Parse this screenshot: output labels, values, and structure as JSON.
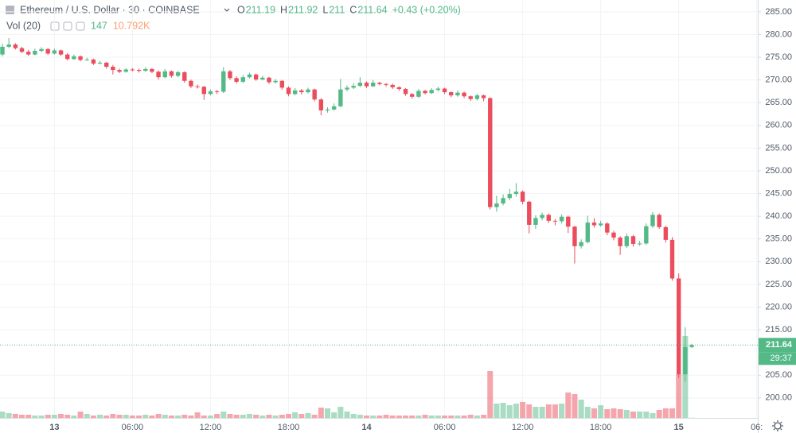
{
  "chart_data": {
    "type": "candlestick",
    "title": "Ethereum / U.S. Dollar · 30 · COINBASE",
    "ohlc_letters": [
      "O",
      "H",
      "L",
      "C"
    ],
    "change": "+0.43 (+0.20%)",
    "volume_indicator": "Vol (20)",
    "volume_ma": "10.792K",
    "countdown": "29:37",
    "up_color": "#53b987",
    "down_color": "#eb4d5c",
    "grid": true,
    "categories": [
      null,
      null,
      null,
      null,
      null,
      null,
      null,
      null,
      "13",
      null,
      null,
      null,
      null,
      null,
      null,
      null,
      null,
      null,
      null,
      null,
      "06:00",
      null,
      null,
      null,
      null,
      null,
      null,
      null,
      null,
      null,
      null,
      null,
      "12:00",
      null,
      null,
      null,
      null,
      null,
      null,
      null,
      null,
      null,
      null,
      null,
      "18:00",
      null,
      null,
      null,
      null,
      null,
      null,
      null,
      null,
      null,
      null,
      null,
      "14",
      null,
      null,
      null,
      null,
      null,
      null,
      null,
      null,
      null,
      null,
      null,
      "06:00",
      null,
      null,
      null,
      null,
      null,
      null,
      null,
      null,
      null,
      null,
      null,
      "12:00",
      null,
      null,
      null,
      null,
      null,
      null,
      null,
      null,
      null,
      null,
      null,
      "18:00",
      null,
      null,
      null,
      null,
      null,
      null,
      null,
      null,
      null,
      null,
      null,
      "15",
      null,
      null,
      null,
      null,
      null,
      null,
      null,
      null,
      null,
      null,
      null,
      "06:"
    ],
    "open": [
      275.6,
      277.3,
      277.8,
      277.0,
      276.2,
      275.6,
      276.4,
      276.8,
      275.8,
      276.5,
      275.6,
      274.6,
      275.2,
      274.4,
      274.5,
      273.6,
      273.8,
      272.9,
      272.2,
      271.8,
      272.3,
      272.2,
      272.0,
      272.4,
      271.8,
      270.6,
      271.9,
      270.9,
      271.7,
      269.8,
      268.6,
      268.5,
      266.9,
      267.5,
      267.4,
      271.9,
      270.4,
      269.6,
      270.6,
      271.2,
      270.1,
      270.5,
      269.5,
      269.8,
      268.3,
      266.9,
      267.7,
      267.3,
      267.9,
      265.7,
      263.3,
      263.5,
      264.2,
      267.9,
      268.3,
      268.7,
      269.4,
      268.6,
      269.4,
      269.1,
      268.9,
      268.4,
      268.0,
      266.9,
      266.3,
      267.6,
      267.1,
      267.8,
      268.1,
      267.3,
      266.6,
      267.2,
      266.4,
      265.8,
      266.6,
      266.0,
      242.0,
      242.8,
      244.0,
      244.9,
      245.4,
      243.2,
      238.1,
      239.6,
      240.3,
      239.0,
      238.9,
      239.9,
      237.7,
      233.4,
      234.3,
      238.6,
      238.0,
      238.4,
      236.4,
      235.3,
      233.4,
      235.6,
      233.9,
      234.0,
      237.8,
      240.3,
      237.6,
      234.8,
      226.3,
      205.2,
      211.19,
      null,
      null,
      null,
      null,
      null,
      null,
      null,
      null,
      null,
      null
    ],
    "high": [
      278.0,
      279.2,
      278.1,
      277.3,
      276.6,
      276.9,
      277.2,
      277.0,
      276.9,
      276.7,
      275.9,
      275.6,
      275.4,
      274.9,
      274.7,
      274.2,
      274.0,
      273.3,
      272.5,
      272.6,
      272.6,
      272.5,
      272.8,
      272.6,
      272.1,
      272.4,
      272.1,
      272.0,
      271.9,
      270.1,
      269.0,
      268.7,
      267.9,
      267.8,
      272.8,
      272.2,
      270.8,
      271.1,
      271.6,
      271.4,
      270.9,
      270.7,
      270.2,
      270.0,
      268.6,
      268.2,
      268.0,
      268.3,
      268.1,
      266.0,
      264.0,
      264.8,
      270.2,
      268.8,
      269.3,
      270.6,
      269.7,
      270.0,
      269.6,
      269.3,
      269.2,
      268.6,
      268.2,
      267.1,
      268.0,
      267.8,
      268.2,
      268.5,
      268.3,
      267.5,
      267.7,
      267.4,
      266.6,
      267.0,
      266.8,
      266.2,
      244.5,
      244.8,
      246.0,
      247.3,
      245.7,
      243.4,
      240.2,
      240.8,
      240.6,
      239.4,
      240.4,
      240.1,
      237.9,
      234.9,
      240.1,
      239.6,
      239.0,
      238.7,
      236.8,
      235.6,
      236.2,
      235.9,
      234.6,
      238.4,
      240.9,
      240.6,
      237.9,
      235.4,
      227.4,
      215.6,
      211.92,
      null,
      null,
      null,
      null,
      null,
      null,
      null,
      null,
      null,
      null
    ],
    "low": [
      275.2,
      277.0,
      276.7,
      275.9,
      275.3,
      275.4,
      276.1,
      275.5,
      275.6,
      275.3,
      274.3,
      274.4,
      274.1,
      274.2,
      273.3,
      273.4,
      272.5,
      271.2,
      271.5,
      271.6,
      271.9,
      271.6,
      271.8,
      271.5,
      270.1,
      270.4,
      270.5,
      270.6,
      269.4,
      268.2,
      268.1,
      265.6,
      266.6,
      266.9,
      267.1,
      270.0,
      269.2,
      269.3,
      270.3,
      269.8,
      269.9,
      269.1,
      269.2,
      267.9,
      266.4,
      266.6,
      266.8,
      267.0,
      265.3,
      262.2,
      262.8,
      263.2,
      264.0,
      267.5,
      268.0,
      268.4,
      268.2,
      268.4,
      268.8,
      268.5,
      268.0,
      267.6,
      266.5,
      265.9,
      266.0,
      266.8,
      266.9,
      267.5,
      266.9,
      266.2,
      266.3,
      266.0,
      265.4,
      265.5,
      265.3,
      241.5,
      241.0,
      242.4,
      243.5,
      244.3,
      242.6,
      236.2,
      237.2,
      239.1,
      238.5,
      238.0,
      238.4,
      236.3,
      229.6,
      232.9,
      234.0,
      237.5,
      237.7,
      235.8,
      234.7,
      231.5,
      233.0,
      233.3,
      233.5,
      233.7,
      237.4,
      237.2,
      234.2,
      225.8,
      204.4,
      203.6,
      211.0,
      null,
      null,
      null,
      null,
      null,
      null,
      null,
      null,
      null,
      null
    ],
    "close": [
      277.3,
      277.8,
      277.0,
      276.2,
      275.6,
      276.4,
      276.8,
      275.8,
      276.5,
      275.6,
      274.6,
      275.2,
      274.4,
      274.5,
      273.6,
      273.8,
      272.9,
      272.2,
      271.8,
      272.3,
      272.2,
      272.0,
      272.4,
      271.8,
      270.6,
      271.9,
      270.9,
      271.7,
      269.8,
      268.6,
      268.5,
      266.9,
      267.5,
      267.4,
      271.9,
      270.4,
      269.6,
      270.6,
      271.2,
      270.1,
      270.5,
      269.5,
      269.8,
      268.3,
      266.9,
      267.7,
      267.3,
      267.9,
      265.7,
      263.3,
      263.5,
      264.2,
      267.9,
      268.3,
      268.7,
      269.4,
      268.6,
      269.4,
      269.1,
      268.9,
      268.4,
      268.0,
      266.9,
      266.3,
      267.6,
      267.1,
      267.8,
      268.1,
      267.3,
      266.6,
      267.2,
      266.4,
      265.8,
      266.6,
      266.0,
      242.0,
      242.8,
      244.0,
      244.9,
      245.4,
      243.2,
      238.1,
      239.6,
      240.3,
      239.0,
      238.9,
      239.9,
      237.7,
      233.4,
      234.3,
      238.6,
      238.0,
      238.4,
      236.4,
      235.3,
      233.4,
      235.6,
      233.9,
      234.0,
      237.8,
      240.3,
      237.6,
      234.8,
      226.3,
      205.2,
      211.2,
      211.64,
      null,
      null,
      null,
      null,
      null,
      null,
      null,
      null,
      null,
      null
    ],
    "volume": [
      4880,
      3660,
      3050,
      2440,
      2440,
      1830,
      1830,
      2440,
      2440,
      3050,
      2440,
      1830,
      4880,
      3050,
      1830,
      2440,
      1830,
      3050,
      2440,
      2440,
      1830,
      1830,
      2440,
      1830,
      3050,
      2440,
      1830,
      1830,
      2440,
      1830,
      4270,
      1830,
      1830,
      3050,
      4880,
      3050,
      2440,
      2440,
      3050,
      2440,
      1830,
      2440,
      1830,
      2440,
      3050,
      4270,
      3050,
      3660,
      2440,
      7930,
      7320,
      4270,
      8540,
      4880,
      3050,
      2440,
      1830,
      1830,
      1830,
      2440,
      1830,
      1830,
      1830,
      1830,
      1830,
      2440,
      1830,
      1830,
      1830,
      1830,
      1830,
      1830,
      2440,
      1830,
      2440,
      35990,
      10980,
      11590,
      9760,
      10980,
      12200,
      10370,
      8540,
      8540,
      10370,
      10370,
      10980,
      19520,
      18300,
      14030,
      8540,
      7320,
      9760,
      6710,
      7320,
      6710,
      6100,
      4880,
      4880,
      4880,
      3660,
      6100,
      7320,
      7320,
      33550,
      62830,
      147,
      null,
      null,
      null,
      null,
      null,
      null,
      null,
      null,
      null,
      null
    ],
    "ylim": [
      195.6,
      287.6
    ],
    "yticks": [
      {
        "value": 200,
        "label": "200.00"
      },
      {
        "value": 205,
        "label": "205.00"
      },
      {
        "value": 215,
        "label": "215.00"
      },
      {
        "value": 220,
        "label": "220.00"
      },
      {
        "value": 225,
        "label": "225.00"
      },
      {
        "value": 230,
        "label": "230.00"
      },
      {
        "value": 235,
        "label": "235.00"
      },
      {
        "value": 240,
        "label": "240.00"
      },
      {
        "value": 245,
        "label": "245.00"
      },
      {
        "value": 250,
        "label": "250.00"
      },
      {
        "value": 255,
        "label": "255.00"
      },
      {
        "value": 260,
        "label": "260.00"
      },
      {
        "value": 265,
        "label": "265.00"
      },
      {
        "value": 270,
        "label": "270.00"
      },
      {
        "value": 275,
        "label": "275.00"
      },
      {
        "value": 280,
        "label": "280.00"
      },
      {
        "value": 285,
        "label": "285.00"
      }
    ]
  }
}
